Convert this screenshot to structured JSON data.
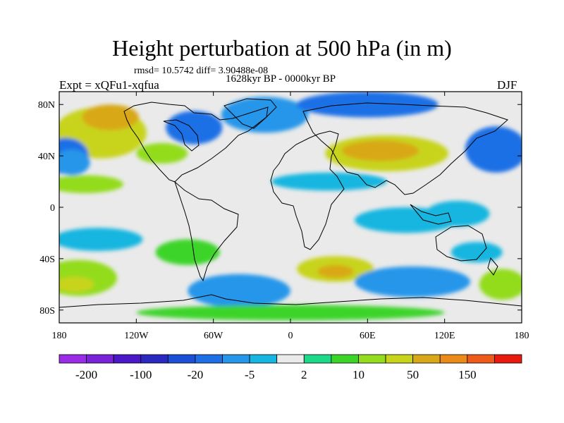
{
  "figure": {
    "title": "Height perturbation at 500 hPa (in m)",
    "stats": "rmsd= 10.5742  diff= 3.90488e-08",
    "period": "1628kyr BP - 0000kyr BP",
    "experiment": "Expt = xQFu1-xqfua",
    "season": "DJF"
  },
  "axes": {
    "x_ticks": [
      {
        "value": -180,
        "label": "180"
      },
      {
        "value": -120,
        "label": "120W"
      },
      {
        "value": -60,
        "label": "60W"
      },
      {
        "value": 0,
        "label": "0"
      },
      {
        "value": 60,
        "label": "60E"
      },
      {
        "value": 120,
        "label": "120E"
      },
      {
        "value": 180,
        "label": "180"
      }
    ],
    "y_ticks": [
      {
        "value": 80,
        "label": "80N"
      },
      {
        "value": 40,
        "label": "40N"
      },
      {
        "value": 0,
        "label": "0"
      },
      {
        "value": -40,
        "label": "40S"
      },
      {
        "value": -80,
        "label": "80S"
      }
    ],
    "lon_range": [
      -180,
      180
    ],
    "lat_range": [
      -90,
      90
    ]
  },
  "colorbar": {
    "colors": [
      "#9a2be6",
      "#7a22d9",
      "#4a18c8",
      "#2b28c0",
      "#1b4fd6",
      "#1e6fe6",
      "#2596ea",
      "#16b6e0",
      "#eaeaea",
      "#1cd98a",
      "#3dd42a",
      "#93dc1e",
      "#c8d41a",
      "#d8a818",
      "#e98a19",
      "#ee5a1a",
      "#e81a10"
    ],
    "labels": [
      {
        "boundary": 1,
        "text": "-200"
      },
      {
        "boundary": 3,
        "text": "-100"
      },
      {
        "boundary": 5,
        "text": "-20"
      },
      {
        "boundary": 7,
        "text": "-5"
      },
      {
        "boundary": 9,
        "text": "2"
      },
      {
        "boundary": 11,
        "text": "10"
      },
      {
        "boundary": 13,
        "text": "50"
      },
      {
        "boundary": 15,
        "text": "150"
      }
    ]
  },
  "field": {
    "background_level": 8,
    "regions": [
      {
        "name": "north-pacific-high",
        "level": 12,
        "lon": -148,
        "lat": 58,
        "rlon": 36,
        "rlat": 20
      },
      {
        "name": "alaska-high-core",
        "level": 13,
        "lon": -140,
        "lat": 70,
        "rlon": 22,
        "rlat": 10
      },
      {
        "name": "pacific-low-west",
        "level": 5,
        "lon": -175,
        "lat": 40,
        "rlon": 18,
        "rlat": 14
      },
      {
        "name": "pacific-low-east",
        "level": 6,
        "lon": -170,
        "lat": 35,
        "rlon": 14,
        "rlat": 10
      },
      {
        "name": "hudson-low",
        "level": 5,
        "lon": -75,
        "lat": 62,
        "rlon": 22,
        "rlat": 13
      },
      {
        "name": "us-high",
        "level": 11,
        "lon": -100,
        "lat": 42,
        "rlon": 20,
        "rlat": 8
      },
      {
        "name": "atlantic-greenland-low",
        "level": 6,
        "lon": -20,
        "lat": 72,
        "rlon": 34,
        "rlat": 14
      },
      {
        "name": "arctic-siberia-low",
        "level": 5,
        "lon": 60,
        "lat": 80,
        "rlon": 55,
        "rlat": 10
      },
      {
        "name": "asia-high",
        "level": 12,
        "lon": 75,
        "lat": 42,
        "rlon": 48,
        "rlat": 14
      },
      {
        "name": "asia-high-core",
        "level": 13,
        "lon": 70,
        "lat": 44,
        "rlon": 30,
        "rlat": 8
      },
      {
        "name": "east-pacific-low",
        "level": 5,
        "lon": 160,
        "lat": 45,
        "rlon": 24,
        "rlat": 18
      },
      {
        "name": "sahara-lowband",
        "level": 7,
        "lon": 30,
        "lat": 20,
        "rlon": 45,
        "rlat": 7
      },
      {
        "name": "tropical-pacific-band",
        "level": 11,
        "lon": -160,
        "lat": 18,
        "rlon": 30,
        "rlat": 7
      },
      {
        "name": "indian-ocean-low",
        "level": 7,
        "lon": 90,
        "lat": -10,
        "rlon": 40,
        "rlat": 10
      },
      {
        "name": "indonesia-low",
        "level": 7,
        "lon": 130,
        "lat": -5,
        "rlon": 25,
        "rlat": 10
      },
      {
        "name": "south-pacific-low",
        "level": 7,
        "lon": -150,
        "lat": -25,
        "rlon": 35,
        "rlat": 9
      },
      {
        "name": "south-pacific-high",
        "level": 11,
        "lon": -165,
        "lat": -55,
        "rlon": 30,
        "rlat": 14
      },
      {
        "name": "south-pacific-high-core",
        "level": 12,
        "lon": -168,
        "lat": -60,
        "rlon": 15,
        "rlat": 6
      },
      {
        "name": "south-america-high",
        "level": 10,
        "lon": -80,
        "lat": -35,
        "rlon": 25,
        "rlat": 10
      },
      {
        "name": "south-atlantic-low",
        "level": 6,
        "lon": -40,
        "lat": -65,
        "rlon": 40,
        "rlat": 13
      },
      {
        "name": "south-africa-high",
        "level": 12,
        "lon": 35,
        "lat": -48,
        "rlon": 30,
        "rlat": 10
      },
      {
        "name": "south-africa-high-core",
        "level": 13,
        "lon": 35,
        "lat": -50,
        "rlon": 14,
        "rlat": 5
      },
      {
        "name": "southern-ocean-low-east",
        "level": 6,
        "lon": 95,
        "lat": -58,
        "rlon": 45,
        "rlat": 12
      },
      {
        "name": "australia-low",
        "level": 7,
        "lon": 145,
        "lat": -35,
        "rlon": 20,
        "rlat": 8
      },
      {
        "name": "antarctic-high",
        "level": 10,
        "lon": 0,
        "lat": -82,
        "rlon": 120,
        "rlat": 6
      },
      {
        "name": "east-pacific-south-high",
        "level": 11,
        "lon": 165,
        "lat": -60,
        "rlon": 18,
        "rlat": 12
      }
    ]
  }
}
